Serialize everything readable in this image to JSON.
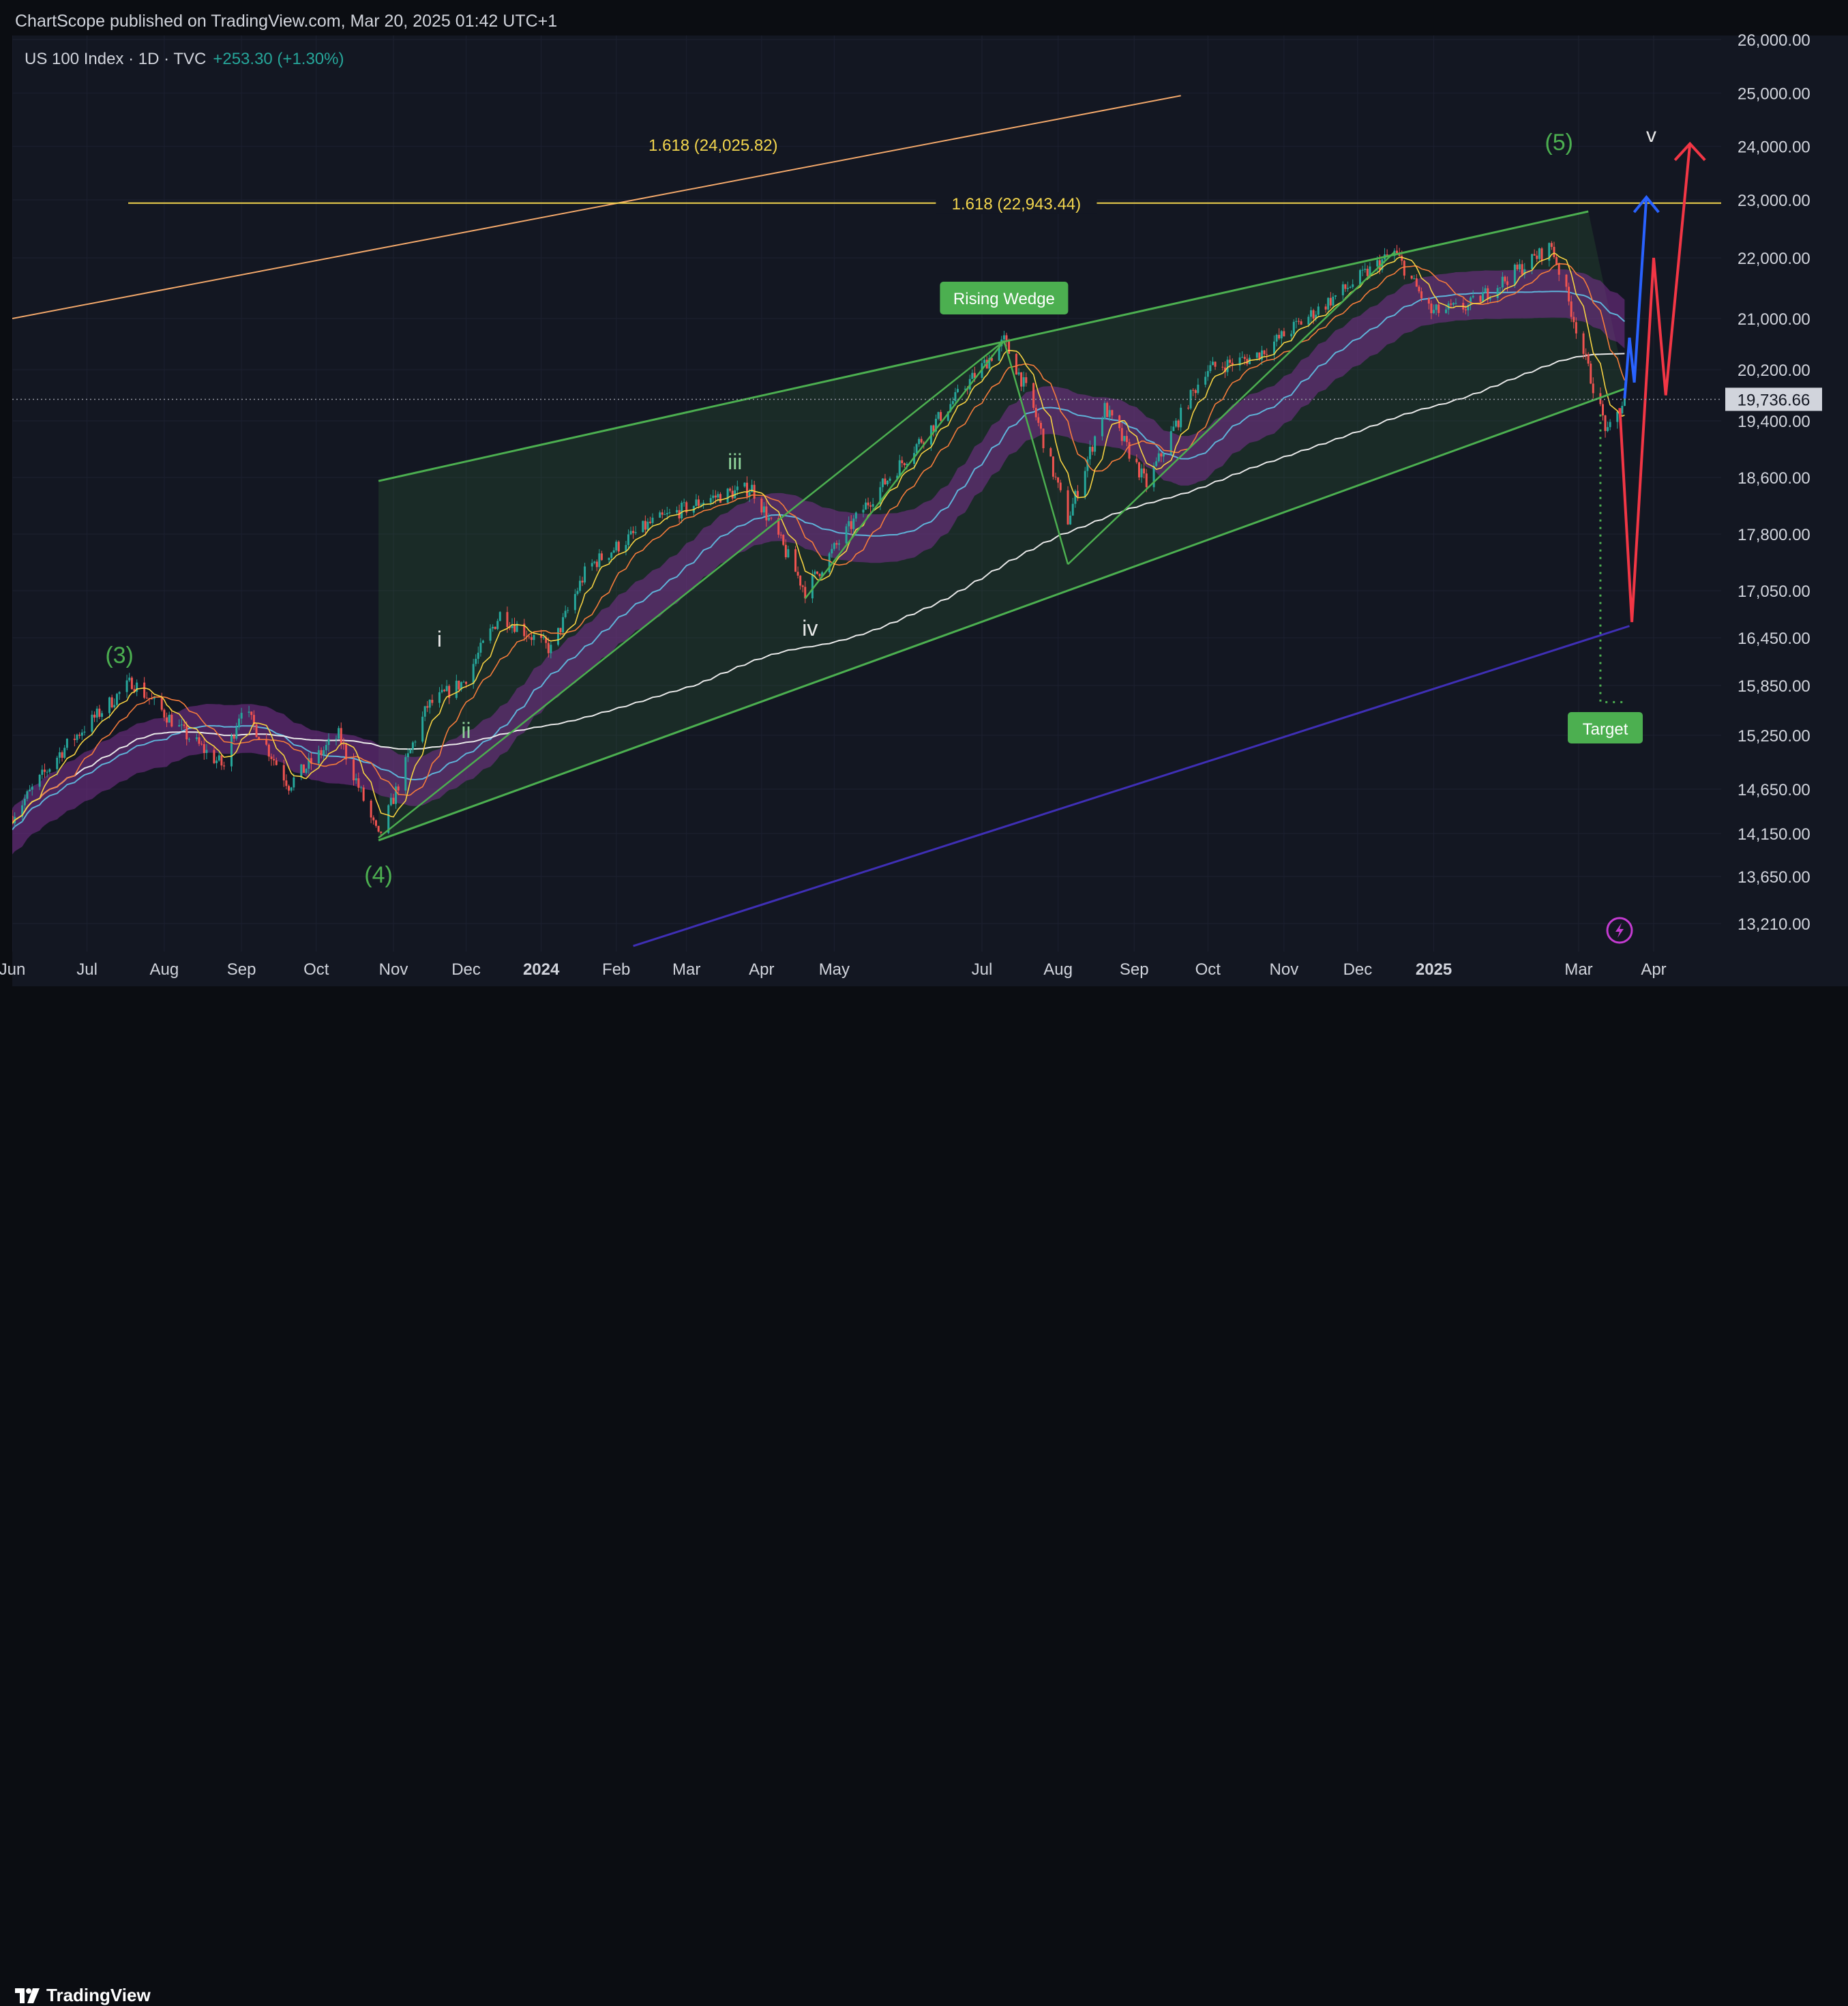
{
  "header": {
    "publisher": "ChartScope published on TradingView.com, Mar 20, 2025 01:42 UTC+1"
  },
  "legend": {
    "symbol": "US 100 Index · 1D · TVC",
    "change": "+253.30 (+1.30%)"
  },
  "footer": {
    "brand": "TradingView"
  },
  "colors": {
    "background": "#131722",
    "wedge": "#4caf50",
    "fib": "#f3d64e",
    "orange_trend": "#f2a86b",
    "ma_white": "#e8e8e8",
    "ma_purple": "#3f2fb5",
    "band": "#7b2f8f",
    "up_candle": "#26a69a",
    "down_candle": "#ef5350",
    "projection_red": "#f23645",
    "projection_blue": "#2962ff"
  },
  "chart_data": {
    "type": "candlestick",
    "symbol": "US 100 Index",
    "interval": "1D",
    "source": "TVC",
    "last_price": "19,736.66",
    "y_axis_ticks": [
      "26,000.00",
      "25,000.00",
      "24,000.00",
      "23,000.00",
      "22,000.00",
      "21,000.00",
      "20,200.00",
      "19,400.00",
      "18,600.00",
      "17,800.00",
      "17,050.00",
      "16,450.00",
      "15,850.00",
      "15,250.00",
      "14,650.00",
      "14,150.00",
      "13,650.00",
      "13,210.00"
    ],
    "x_axis_ticks": [
      "Jun",
      "Jul",
      "Aug",
      "Sep",
      "Oct",
      "Nov",
      "Dec",
      "2024",
      "Feb",
      "Mar",
      "Apr",
      "May",
      "Jul",
      "Aug",
      "Sep",
      "Oct",
      "Nov",
      "Dec",
      "2025",
      "Mar",
      "Apr"
    ],
    "price_path": [
      [
        "2023-06-01",
        14350
      ],
      [
        "2023-06-20",
        15050
      ],
      [
        "2023-07-19",
        15900
      ],
      [
        "2023-08-10",
        15250
      ],
      [
        "2023-08-25",
        14900
      ],
      [
        "2023-09-01",
        15600
      ],
      [
        "2023-09-20",
        14700
      ],
      [
        "2023-10-10",
        15250
      ],
      [
        "2023-10-26",
        14100
      ],
      [
        "2023-11-15",
        15600
      ],
      [
        "2023-11-30",
        15900
      ],
      [
        "2023-12-15",
        16750
      ],
      [
        "2024-01-05",
        16300
      ],
      [
        "2024-01-20",
        17350
      ],
      [
        "2024-02-15",
        17950
      ],
      [
        "2024-03-10",
        18300
      ],
      [
        "2024-03-28",
        18450
      ],
      [
        "2024-04-19",
        17050
      ],
      [
        "2024-05-15",
        18250
      ],
      [
        "2024-06-10",
        19300
      ],
      [
        "2024-07-10",
        20650
      ],
      [
        "2024-07-20",
        19800
      ],
      [
        "2024-08-05",
        18000
      ],
      [
        "2024-08-20",
        19600
      ],
      [
        "2024-09-06",
        18500
      ],
      [
        "2024-09-30",
        20200
      ],
      [
        "2024-10-20",
        20400
      ],
      [
        "2024-11-10",
        21000
      ],
      [
        "2024-12-16",
        22100
      ],
      [
        "2024-12-31",
        21100
      ],
      [
        "2025-01-15",
        21200
      ],
      [
        "2025-02-18",
        22200
      ],
      [
        "2025-03-05",
        20200
      ],
      [
        "2025-03-13",
        19200
      ],
      [
        "2025-03-20",
        19736.66
      ]
    ],
    "wave_labels": [
      "(3)",
      "(4)",
      "i",
      "ii",
      "iii",
      "iv",
      "(5)",
      "v"
    ],
    "annotations": [
      "Rising Wedge",
      "Target",
      "1.618 (24,025.82)",
      "1.618 (22,943.44)"
    ]
  }
}
